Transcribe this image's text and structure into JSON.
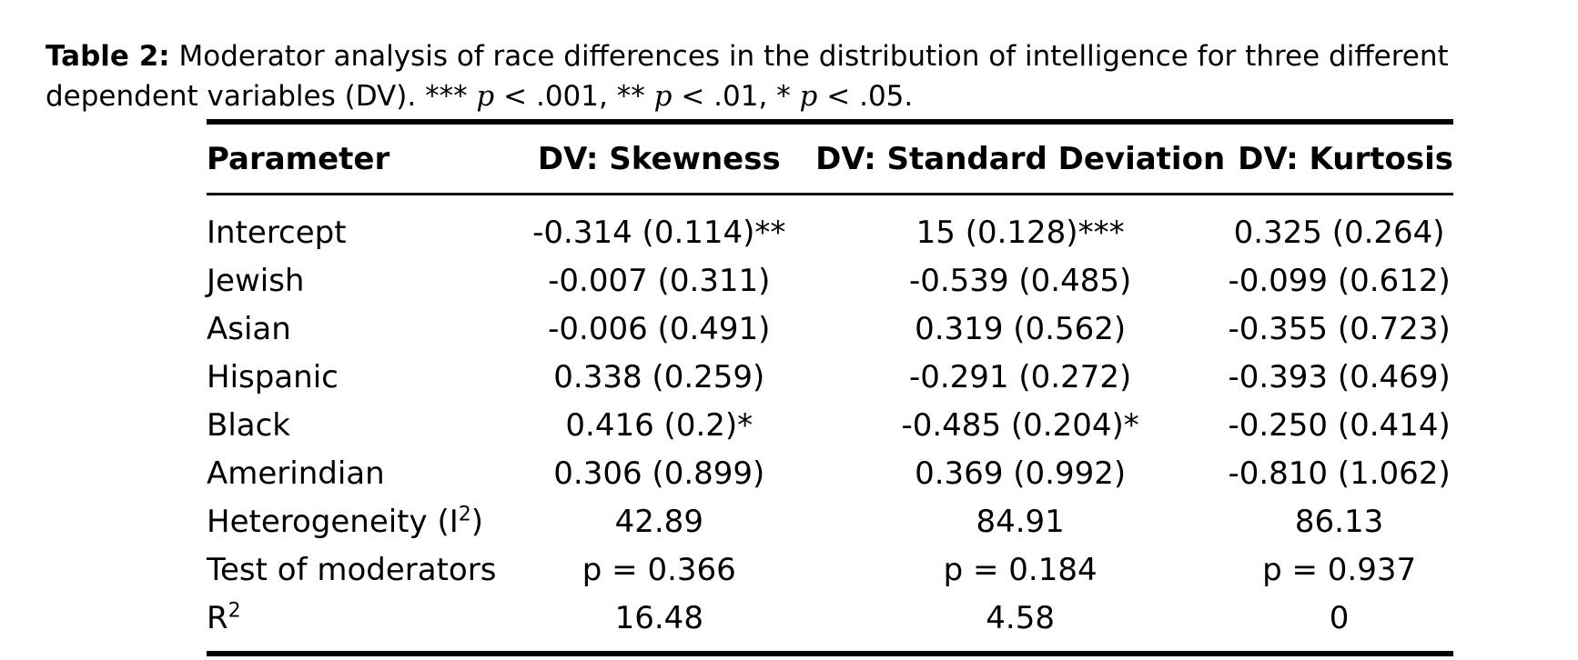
{
  "caption": {
    "label": "Table 2:",
    "text": "Moderator analysis of race differences in the distribution of intelligence for three different dependent variables (DV).",
    "sig_levels": [
      {
        "stars": "***",
        "p": "p",
        "op": "<",
        "value": ".001"
      },
      {
        "stars": "**",
        "p": "p",
        "op": "<",
        "value": ".01"
      },
      {
        "stars": "*",
        "p": "p",
        "op": "<",
        "value": ".05"
      }
    ]
  },
  "table": {
    "headers": [
      "Parameter",
      "DV: Skewness",
      "DV: Standard Deviation",
      "DV: Kurtosis"
    ],
    "rows": [
      {
        "param": "Intercept",
        "sup": "",
        "skew": "-0.314 (0.114)**",
        "sd": "15 (0.128)***",
        "kurt": "0.325 (0.264)"
      },
      {
        "param": "Jewish",
        "sup": "",
        "skew": "-0.007 (0.311)",
        "sd": "-0.539 (0.485)",
        "kurt": "-0.099 (0.612)"
      },
      {
        "param": "Asian",
        "sup": "",
        "skew": "-0.006 (0.491)",
        "sd": "0.319 (0.562)",
        "kurt": "-0.355 (0.723)"
      },
      {
        "param": "Hispanic",
        "sup": "",
        "skew": "0.338 (0.259)",
        "sd": "-0.291 (0.272)",
        "kurt": "-0.393 (0.469)"
      },
      {
        "param": "Black",
        "sup": "",
        "skew": "0.416 (0.2)*",
        "sd": "-0.485 (0.204)*",
        "kurt": "-0.250 (0.414)"
      },
      {
        "param": "Amerindian",
        "sup": "",
        "skew": "0.306 (0.899)",
        "sd": "0.369 (0.992)",
        "kurt": "-0.810 (1.062)"
      },
      {
        "param": "Heterogeneity (I",
        "sup": "2",
        "suffix": ")",
        "skew": "42.89",
        "sd": "84.91",
        "kurt": "86.13"
      },
      {
        "param": "Test of moderators",
        "sup": "",
        "skew": "p = 0.366",
        "sd": "p = 0.184",
        "kurt": "p = 0.937"
      },
      {
        "param": "R",
        "sup": "2",
        "skew": "16.48",
        "sd": "4.58",
        "kurt": "0"
      }
    ]
  }
}
